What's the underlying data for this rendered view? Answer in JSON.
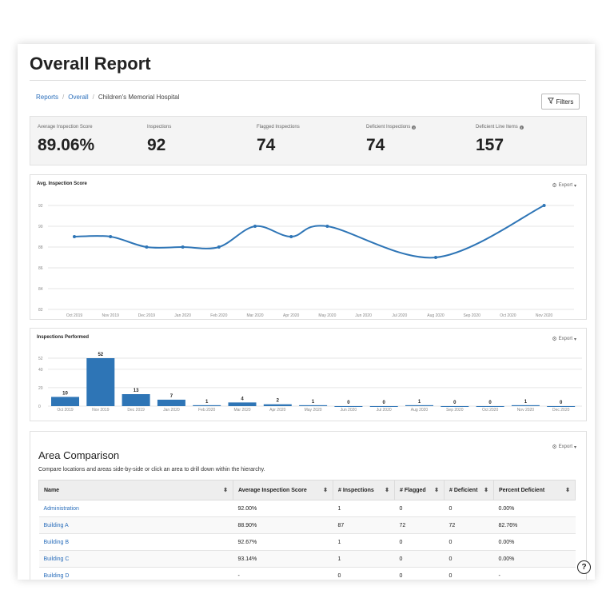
{
  "page": {
    "title": "Overall Report"
  },
  "breadcrumb": {
    "items": [
      "Reports",
      "Overall",
      "Children's Memorial Hospital"
    ]
  },
  "filters": {
    "label": "Filters"
  },
  "kpis": [
    {
      "label": "Average Inspection Score",
      "value": "89.06%",
      "info": false
    },
    {
      "label": "Inspections",
      "value": "92",
      "info": false
    },
    {
      "label": "Flagged Inspections",
      "value": "74",
      "info": false
    },
    {
      "label": "Deficient Inspections",
      "value": "74",
      "info": true
    },
    {
      "label": "Deficient Line Items",
      "value": "157",
      "info": true
    }
  ],
  "export_label": "Export",
  "chart_data": [
    {
      "type": "line",
      "title": "Avg. Inspection Score",
      "x": [
        "Oct 2019",
        "Nov 2019",
        "Dec 2019",
        "Jan 2020",
        "Feb 2020",
        "Mar 2020",
        "Apr 2020",
        "May 2020",
        "Jun 2020",
        "Jul 2020",
        "Aug 2020",
        "Sep 2020",
        "Oct 2020",
        "Nov 2020"
      ],
      "y": [
        89,
        89,
        88,
        88,
        88,
        90,
        89,
        90,
        null,
        null,
        87,
        null,
        null,
        92
      ],
      "ylim": [
        82,
        92
      ],
      "yticks": [
        82,
        84,
        86,
        88,
        90,
        92
      ],
      "color": "#2e75b6",
      "grid": true
    },
    {
      "type": "bar",
      "title": "Inspections Performed",
      "categories": [
        "Oct 2019",
        "Nov 2019",
        "Dec 2019",
        "Jan 2020",
        "Feb 2020",
        "Mar 2020",
        "Apr 2020",
        "May 2020",
        "Jun 2020",
        "Jul 2020",
        "Aug 2020",
        "Sep 2020",
        "Oct 2020",
        "Nov 2020",
        "Dec 2020"
      ],
      "values": [
        10,
        52,
        13,
        7,
        1,
        4,
        2,
        1,
        0,
        0,
        1,
        0,
        0,
        1,
        0
      ],
      "ylim": [
        0,
        52
      ],
      "yticks": [
        0,
        20,
        40,
        52
      ],
      "color": "#2e75b6",
      "grid": true
    }
  ],
  "area": {
    "title": "Area Comparison",
    "subtitle": "Compare locations and areas side-by-side or click an area to drill down within the hierarchy.",
    "columns": [
      "Name",
      "Average Inspection Score",
      "# Inspections",
      "# Flagged",
      "# Deficient",
      "Percent Deficient"
    ],
    "rows": [
      [
        "Administration",
        "92.00%",
        "1",
        "0",
        "0",
        "0.00%"
      ],
      [
        "Building A",
        "88.90%",
        "87",
        "72",
        "72",
        "82.76%"
      ],
      [
        "Building B",
        "92.67%",
        "1",
        "0",
        "0",
        "0.00%"
      ],
      [
        "Building C",
        "93.14%",
        "1",
        "0",
        "0",
        "0.00%"
      ],
      [
        "Building D",
        "-",
        "0",
        "0",
        "0",
        "-"
      ]
    ]
  },
  "help": {
    "label": "?"
  }
}
